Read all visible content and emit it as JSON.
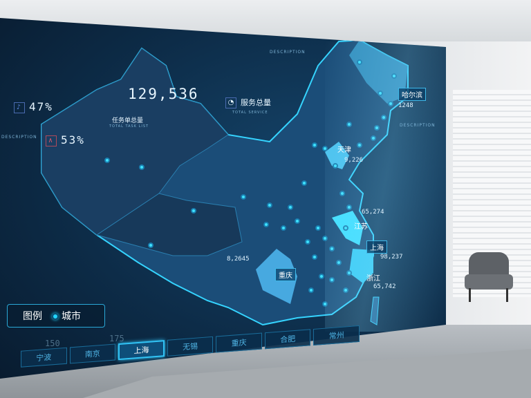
{
  "stats": {
    "total_tasks_value": "129,536",
    "total_tasks_label": "任务单总量",
    "total_tasks_sub": "TOTAL TASK LIST",
    "total_service_label": "服务总量",
    "total_service_sub": "TOTAL SERVICE",
    "percent_a": "47%",
    "percent_b": "53%"
  },
  "panels": {
    "description_left": "DESCRIPTION",
    "description_top": "DESCRIPTION",
    "description_right": "DESCRIPTION"
  },
  "regions": [
    {
      "name": "哈尔滨",
      "value": "1248"
    },
    {
      "name": "天津",
      "value": "9,226"
    },
    {
      "name": "江苏",
      "value": "65,274"
    },
    {
      "name": "上海",
      "value": "98,237"
    },
    {
      "name": "浙江",
      "value": "65,742"
    },
    {
      "name": "重庆",
      "value": "8,2645"
    }
  ],
  "legend": {
    "title": "图例",
    "item": "城市"
  },
  "scale": [
    "150",
    "175"
  ],
  "tabs": [
    {
      "label": "宁波",
      "active": false
    },
    {
      "label": "南京",
      "active": false
    },
    {
      "label": "上海",
      "active": true
    },
    {
      "label": "无锡",
      "active": false
    },
    {
      "label": "重庆",
      "active": false
    },
    {
      "label": "合肥",
      "active": false
    },
    {
      "label": "常州",
      "active": false
    }
  ],
  "colors": {
    "accent": "#31c3f5",
    "map_fill": "#1b4d78",
    "highlight": "#3fc8f2",
    "screen_bg": "#0d2c48"
  }
}
